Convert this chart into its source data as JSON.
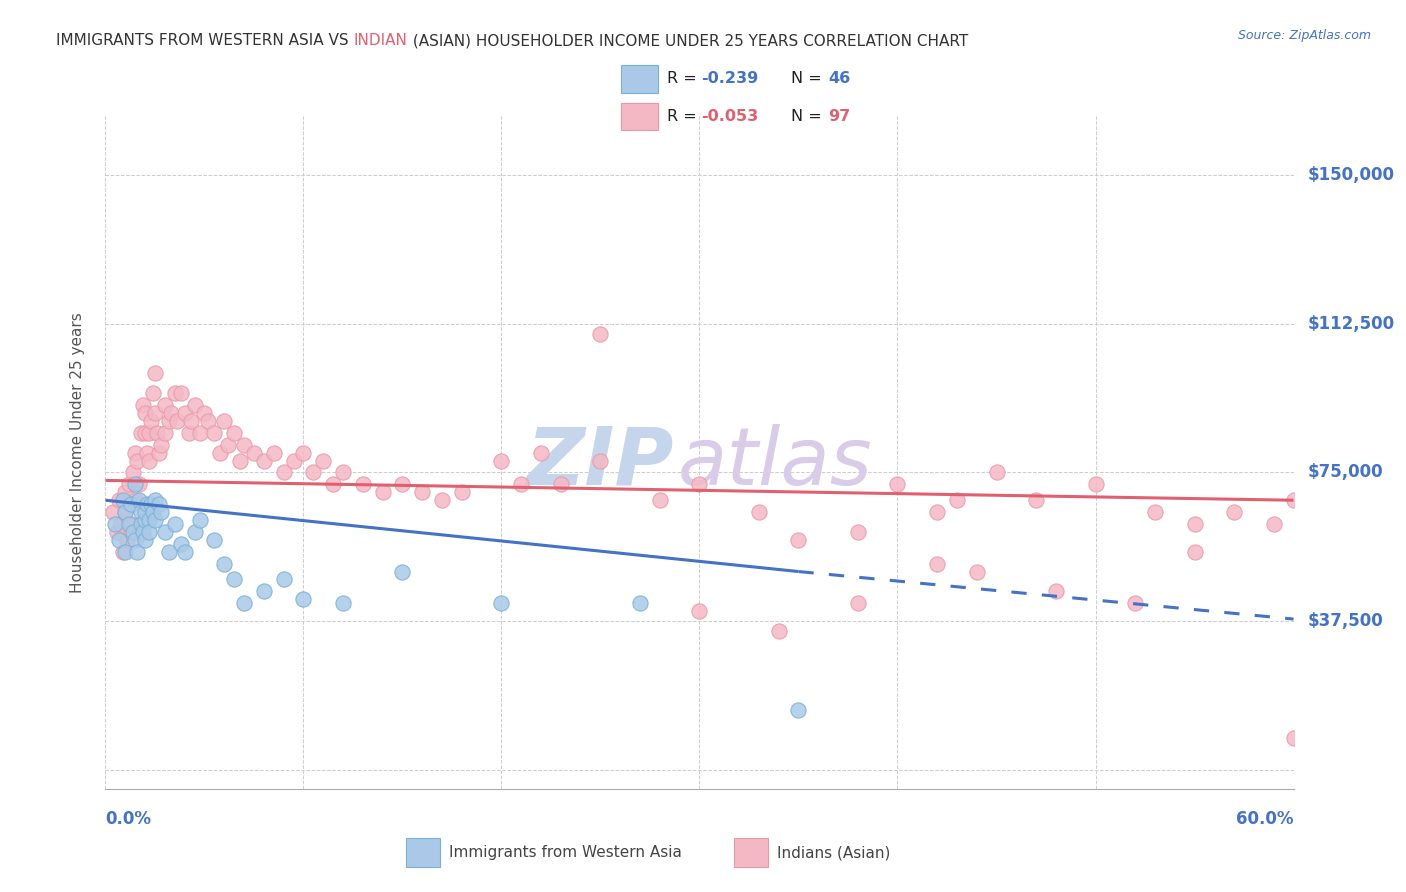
{
  "title_part1": "IMMIGRANTS FROM WESTERN ASIA VS ",
  "title_part2": "INDIAN",
  "title_part3": " (ASIAN) HOUSEHOLDER INCOME UNDER 25 YEARS CORRELATION CHART",
  "source": "Source: ZipAtlas.com",
  "ylabel": "Householder Income Under 25 years",
  "xmin": 0.0,
  "xmax": 0.6,
  "ymin": -5000,
  "ymax": 165000,
  "yticks": [
    0,
    37500,
    75000,
    112500,
    150000
  ],
  "ytick_labels": [
    "",
    "$37,500",
    "$75,000",
    "$112,500",
    "$150,000"
  ],
  "legend_R1": "-0.239",
  "legend_N1": "46",
  "legend_R2": "-0.053",
  "legend_N2": "97",
  "color_blue_fill": "#aac9e8",
  "color_blue_edge": "#7bafd4",
  "color_pink_fill": "#f4b8c5",
  "color_pink_edge": "#e899a8",
  "color_blue_line": "#4472c4",
  "color_pink_line": "#e06070",
  "color_title_main": "#333333",
  "color_title_indian": "#e06070",
  "color_axis_labels": "#4472c4",
  "color_grid": "#cccccc",
  "bg_color": "#ffffff",
  "watermark_zip_color": "#c5d5ec",
  "watermark_atlas_color": "#d8cce8",
  "blue_x": [
    0.005,
    0.007,
    0.009,
    0.01,
    0.01,
    0.012,
    0.013,
    0.014,
    0.015,
    0.015,
    0.016,
    0.017,
    0.018,
    0.018,
    0.019,
    0.02,
    0.02,
    0.02,
    0.021,
    0.022,
    0.022,
    0.023,
    0.024,
    0.025,
    0.025,
    0.027,
    0.028,
    0.03,
    0.032,
    0.035,
    0.038,
    0.04,
    0.045,
    0.048,
    0.055,
    0.06,
    0.065,
    0.07,
    0.08,
    0.09,
    0.1,
    0.12,
    0.15,
    0.2,
    0.27,
    0.35
  ],
  "blue_y": [
    62000,
    58000,
    68000,
    55000,
    65000,
    62000,
    67000,
    60000,
    72000,
    58000,
    55000,
    68000,
    65000,
    62000,
    60000,
    58000,
    63000,
    65000,
    67000,
    63000,
    60000,
    67000,
    65000,
    68000,
    63000,
    67000,
    65000,
    60000,
    55000,
    62000,
    57000,
    55000,
    60000,
    63000,
    58000,
    52000,
    48000,
    42000,
    45000,
    48000,
    43000,
    42000,
    50000,
    42000,
    42000,
    15000
  ],
  "pink_x": [
    0.004,
    0.006,
    0.007,
    0.008,
    0.009,
    0.01,
    0.01,
    0.011,
    0.012,
    0.013,
    0.014,
    0.015,
    0.015,
    0.016,
    0.017,
    0.018,
    0.019,
    0.02,
    0.02,
    0.021,
    0.022,
    0.022,
    0.023,
    0.024,
    0.025,
    0.025,
    0.026,
    0.027,
    0.028,
    0.03,
    0.03,
    0.032,
    0.033,
    0.035,
    0.036,
    0.038,
    0.04,
    0.042,
    0.043,
    0.045,
    0.048,
    0.05,
    0.052,
    0.055,
    0.058,
    0.06,
    0.062,
    0.065,
    0.068,
    0.07,
    0.075,
    0.08,
    0.085,
    0.09,
    0.095,
    0.1,
    0.105,
    0.11,
    0.115,
    0.12,
    0.13,
    0.14,
    0.15,
    0.16,
    0.17,
    0.18,
    0.2,
    0.21,
    0.22,
    0.23,
    0.25,
    0.28,
    0.3,
    0.33,
    0.35,
    0.38,
    0.4,
    0.42,
    0.45,
    0.47,
    0.5,
    0.53,
    0.55,
    0.57,
    0.59,
    0.6,
    0.38,
    0.42,
    0.48,
    0.52,
    0.34,
    0.44,
    0.3,
    0.25,
    0.6,
    0.55,
    0.43
  ],
  "pink_y": [
    65000,
    60000,
    68000,
    62000,
    55000,
    70000,
    65000,
    58000,
    72000,
    62000,
    75000,
    80000,
    68000,
    78000,
    72000,
    85000,
    92000,
    90000,
    85000,
    80000,
    78000,
    85000,
    88000,
    95000,
    100000,
    90000,
    85000,
    80000,
    82000,
    92000,
    85000,
    88000,
    90000,
    95000,
    88000,
    95000,
    90000,
    85000,
    88000,
    92000,
    85000,
    90000,
    88000,
    85000,
    80000,
    88000,
    82000,
    85000,
    78000,
    82000,
    80000,
    78000,
    80000,
    75000,
    78000,
    80000,
    75000,
    78000,
    72000,
    75000,
    72000,
    70000,
    72000,
    70000,
    68000,
    70000,
    78000,
    72000,
    80000,
    72000,
    78000,
    68000,
    72000,
    65000,
    58000,
    60000,
    72000,
    65000,
    75000,
    68000,
    72000,
    65000,
    62000,
    65000,
    62000,
    68000,
    42000,
    52000,
    45000,
    42000,
    35000,
    50000,
    40000,
    110000,
    8000,
    55000,
    68000
  ],
  "blue_trend_x0": 0.0,
  "blue_trend_x1": 0.35,
  "blue_trend_x2": 0.6,
  "blue_trend_y0": 68000,
  "blue_trend_y1": 50000,
  "blue_trend_y2": 38000,
  "pink_trend_x0": 0.0,
  "pink_trend_x1": 0.6,
  "pink_trend_y0": 73000,
  "pink_trend_y1": 68000,
  "xtick_positions": [
    0.0,
    0.1,
    0.2,
    0.3,
    0.4,
    0.5,
    0.6
  ]
}
